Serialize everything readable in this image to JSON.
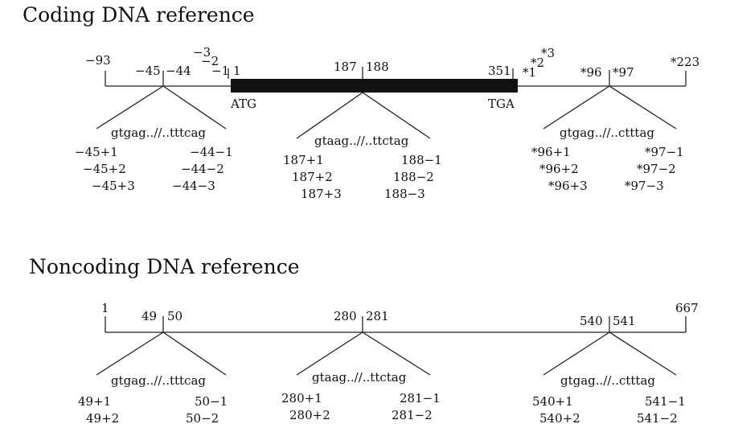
{
  "coding": {
    "title": "Coding DNA reference",
    "pos": {
      "n93": "−93",
      "n45": "−45",
      "n44": "−44",
      "n3": "−3",
      "n2": "−2",
      "n1": "−1",
      "p1": "1",
      "p187": "187",
      "p188": "188",
      "p351": "351",
      "s1": "*1",
      "s2": "*2",
      "s3": "*3",
      "s96": "*96",
      "s97": "*97",
      "s223": "*223"
    },
    "atg": "ATG",
    "tga": "TGA",
    "introns": [
      {
        "seq": "gtgag..//..tttcag",
        "left": [
          "−45+1",
          "−45+2",
          "−45+3"
        ],
        "right": [
          "−44−1",
          "−44−2",
          "−44−3"
        ]
      },
      {
        "seq": "gtaag..//..ttctag",
        "left": [
          "187+1",
          "187+2",
          "187+3"
        ],
        "right": [
          "188−1",
          "188−2",
          "188−3"
        ]
      },
      {
        "seq": "gtgag..//..ctttag",
        "left": [
          "*96+1",
          "*96+2",
          "*96+3"
        ],
        "right": [
          "*97−1",
          "*97−2",
          "*97−3"
        ]
      }
    ]
  },
  "noncoding": {
    "title": "Noncoding DNA reference",
    "pos": {
      "p1": "1",
      "p49": "49",
      "p50": "50",
      "p280": "280",
      "p281": "281",
      "p540": "540",
      "p541": "541",
      "p667": "667"
    },
    "introns": [
      {
        "seq": "gtgag..//..tttcag",
        "left": [
          "49+1",
          "49+2"
        ],
        "right": [
          "50−1",
          "50−2"
        ]
      },
      {
        "seq": "gtaag..//..ttctag",
        "left": [
          "280+1",
          "280+2"
        ],
        "right": [
          "281−1",
          "281−2"
        ]
      },
      {
        "seq": "gtgag..//..ctttag",
        "left": [
          "540+1",
          "540+2"
        ],
        "right": [
          "541−1",
          "541−2"
        ]
      }
    ]
  }
}
